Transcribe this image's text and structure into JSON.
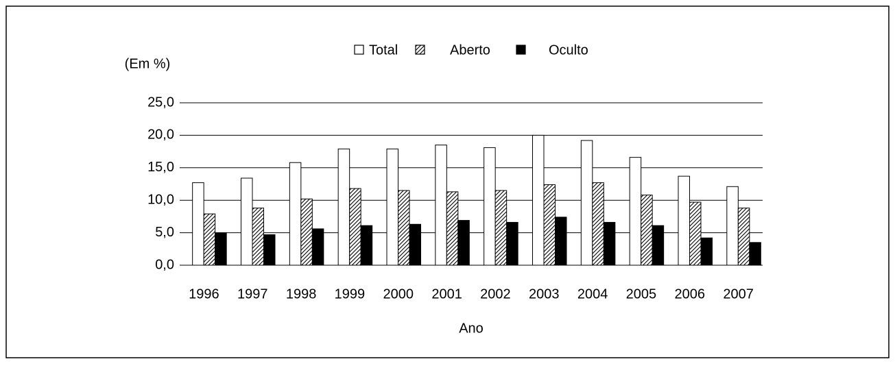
{
  "chart_data": {
    "type": "bar",
    "y_label": "(Em %)",
    "x_label": "Ano",
    "categories": [
      "1996",
      "1997",
      "1998",
      "1999",
      "2000",
      "2001",
      "2002",
      "2003",
      "2004",
      "2005",
      "2006",
      "2007"
    ],
    "series": [
      {
        "name": "Total",
        "color": "#ffffff",
        "values": [
          12.7,
          13.4,
          15.8,
          17.9,
          17.9,
          18.5,
          18.1,
          20.0,
          19.2,
          16.6,
          13.7,
          12.1
        ]
      },
      {
        "name": "Aberto",
        "color": "#808080",
        "pattern": "hatch",
        "values": [
          7.9,
          8.8,
          10.2,
          11.8,
          11.5,
          11.3,
          11.5,
          12.4,
          12.7,
          10.8,
          9.7,
          8.8
        ]
      },
      {
        "name": "Oculto",
        "color": "#000000",
        "values": [
          5.0,
          4.7,
          5.6,
          6.1,
          6.3,
          6.9,
          6.6,
          7.4,
          6.6,
          6.1,
          4.2,
          3.5
        ]
      }
    ],
    "ylim": [
      0,
      25
    ],
    "yticks": [
      {
        "value": 0,
        "label": "0,0"
      },
      {
        "value": 5,
        "label": "5,0"
      },
      {
        "value": 10,
        "label": "10,0"
      },
      {
        "value": 15,
        "label": "15,0"
      },
      {
        "value": 20,
        "label": "20,0"
      },
      {
        "value": 25,
        "label": "25,0"
      }
    ],
    "grid": true
  }
}
